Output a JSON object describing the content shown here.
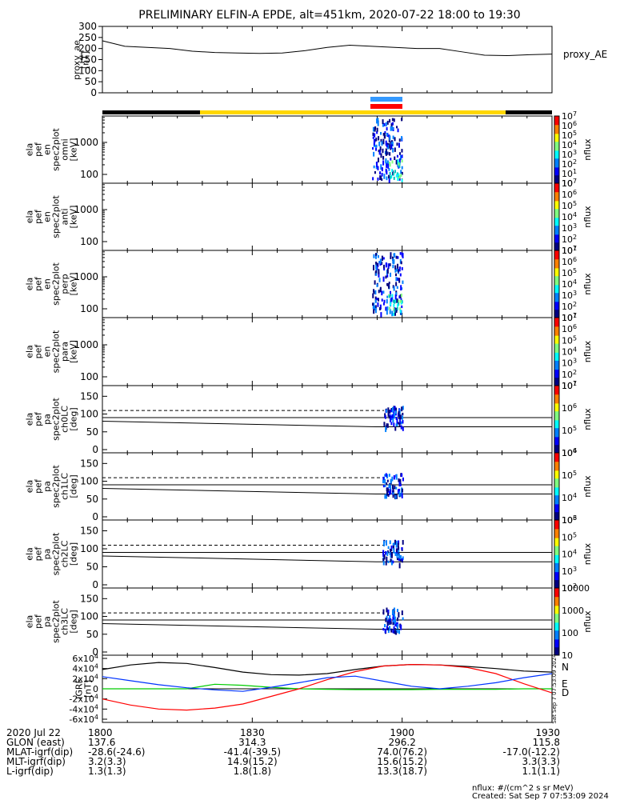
{
  "title": "PRELIMINARY ELFIN-A EPDE, alt=451km, 2020-07-22 18:00 to 19:30",
  "colors": {
    "black_bar": "#000000",
    "yellow_bar": "#ffd700",
    "blue_bar": "#3399ff",
    "red_bar": "#ff0000",
    "grid": "#000000"
  },
  "chart_data": [
    {
      "type": "line",
      "panel": "proxy_ae",
      "ylabel_lines": [
        "proxy_ae",
        "[nT]"
      ],
      "ylim": [
        0,
        300
      ],
      "yticks": [
        "0",
        "50",
        "100",
        "150",
        "200",
        "250",
        "300"
      ],
      "legend": "proxy_AE",
      "x": [
        0,
        0.05,
        0.1,
        0.15,
        0.2,
        0.25,
        0.3,
        0.35,
        0.4,
        0.45,
        0.5,
        0.55,
        0.6,
        0.65,
        0.7,
        0.75,
        0.8,
        0.85,
        0.9,
        0.95,
        1.0
      ],
      "values": [
        235,
        210,
        205,
        200,
        188,
        182,
        180,
        178,
        180,
        190,
        205,
        215,
        210,
        205,
        200,
        200,
        185,
        170,
        168,
        172,
        175
      ]
    },
    {
      "type": "heatmap",
      "panel": "omni",
      "ylabel_lines": [
        "ela",
        "pef",
        "en",
        "spec2plot",
        "omni",
        "[keV]"
      ],
      "ytick_labels": [
        "100",
        "1000"
      ],
      "colorbar_labels": [
        "10",
        "10^1",
        "10^2",
        "10^3",
        "10^4",
        "10^5",
        "10^6",
        "10^7"
      ],
      "colorbar_title": "nflux"
    },
    {
      "type": "heatmap",
      "panel": "anti",
      "ylabel_lines": [
        "ela",
        "pef",
        "en",
        "spec2plot",
        "anti",
        "[keV]"
      ],
      "ytick_labels": [
        "100",
        "1000"
      ],
      "colorbar_labels": [
        "10^1",
        "10^2",
        "10^3",
        "10^4",
        "10^5",
        "10^6",
        "10^7"
      ],
      "colorbar_title": "nflux"
    },
    {
      "type": "heatmap",
      "panel": "perp",
      "ylabel_lines": [
        "ela",
        "pef",
        "en",
        "spec2plot",
        "perp",
        "[keV]"
      ],
      "ytick_labels": [
        "100",
        "1000"
      ],
      "colorbar_labels": [
        "10^1",
        "10^2",
        "10^3",
        "10^4",
        "10^5",
        "10^6",
        "10^7"
      ],
      "colorbar_title": "nflux"
    },
    {
      "type": "heatmap",
      "panel": "para",
      "ylabel_lines": [
        "ela",
        "pef",
        "en",
        "spec2plot",
        "para",
        "[keV]"
      ],
      "ytick_labels": [
        "100",
        "1000"
      ],
      "colorbar_labels": [
        "10^1",
        "10^2",
        "10^3",
        "10^4",
        "10^5",
        "10^6",
        "10^7"
      ],
      "colorbar_title": "nflux"
    },
    {
      "type": "heatmap",
      "panel": "ch0LC",
      "ylabel_lines": [
        "ela",
        "pef",
        "pa",
        "spec2plot",
        "ch0LC",
        "[deg]"
      ],
      "yticks": [
        "0",
        "50",
        "100",
        "150"
      ],
      "ylim": [
        0,
        180
      ],
      "colorbar_labels": [
        "10^4",
        "10^5",
        "10^6",
        "10^7"
      ],
      "colorbar_title": "nflux"
    },
    {
      "type": "heatmap",
      "panel": "ch1LC",
      "ylabel_lines": [
        "ela",
        "pef",
        "pa",
        "spec2plot",
        "ch1LC",
        "[deg]"
      ],
      "yticks": [
        "0",
        "50",
        "100",
        "150"
      ],
      "ylim": [
        0,
        180
      ],
      "colorbar_labels": [
        "10^3",
        "10^4",
        "10^5",
        "10^6"
      ],
      "colorbar_title": "nflux"
    },
    {
      "type": "heatmap",
      "panel": "ch2LC",
      "ylabel_lines": [
        "ela",
        "pef",
        "pa",
        "spec2plot",
        "ch2LC",
        "[deg]"
      ],
      "yticks": [
        "0",
        "50",
        "100",
        "150"
      ],
      "ylim": [
        0,
        180
      ],
      "colorbar_labels": [
        "10^2",
        "10^3",
        "10^4",
        "10^5",
        "10^6"
      ],
      "colorbar_title": "nflux"
    },
    {
      "type": "heatmap",
      "panel": "ch3LC",
      "ylabel_lines": [
        "ela",
        "pef",
        "pa",
        "spec2plot",
        "ch3LC",
        "[deg]"
      ],
      "yticks": [
        "0",
        "50",
        "100",
        "150"
      ],
      "ylim": [
        0,
        180
      ],
      "colorbar_labels": [
        "10",
        "100",
        "1000",
        "10000"
      ],
      "colorbar_title": "nflux"
    },
    {
      "type": "line",
      "panel": "igrf",
      "ylabel_lines": [
        "IGRF",
        "[nT]"
      ],
      "ylim": [
        -60000,
        60000
      ],
      "yticks": [
        "-6x10^4",
        "-4x10^4",
        "-2x10^4",
        "0",
        "2x10^4",
        "4x10^4",
        "6x10^4"
      ],
      "series": [
        {
          "name": "N",
          "color": "#000000",
          "values": [
            38000,
            47000,
            52000,
            50000,
            42000,
            33000,
            28000,
            27000,
            30000,
            38000,
            45000,
            48000,
            47000,
            44000,
            40000,
            35000,
            33000
          ]
        },
        {
          "name": "E",
          "color": "#00cc00",
          "values": [
            0,
            0,
            0,
            0,
            9000,
            7000,
            3000,
            0,
            -1000,
            -1500,
            -1500,
            -1500,
            -1000,
            -1000,
            -1000,
            0,
            0
          ]
        },
        {
          "name": "D",
          "color": "#ff0000",
          "values": [
            -20000,
            -32000,
            -40000,
            -42000,
            -38000,
            -30000,
            -15000,
            0,
            18000,
            34000,
            45000,
            48000,
            47000,
            42000,
            30000,
            10000,
            -8000
          ]
        },
        {
          "name": "blue",
          "color": "#0033ff",
          "values": [
            24000,
            16000,
            8000,
            2000,
            -2000,
            -5000,
            3000,
            12000,
            22000,
            25000,
            15000,
            5000,
            0,
            5000,
            12000,
            22000,
            30000
          ]
        }
      ],
      "legend": [
        "N",
        "E",
        "D"
      ],
      "side_note": "Sat Sep  7 07:53:09 2024"
    }
  ],
  "xaxis": {
    "tick_labels": [
      "1800",
      "1830",
      "1900",
      "1930"
    ],
    "rows": [
      {
        "label": "2020 Jul 22",
        "values": [
          "1800",
          "1830",
          "1900",
          "1930"
        ]
      },
      {
        "label": "GLON (east)",
        "values": [
          "137.6",
          "314.3",
          "296.2",
          "115.8"
        ]
      },
      {
        "label": "MLAT-igrf(dip)",
        "values": [
          "-28.6(-24.6)",
          "-41.4(-39.5)",
          "74.0(76.2)",
          "-17.0(-12.2)"
        ]
      },
      {
        "label": "MLT-igrf(dip)",
        "values": [
          "3.2(3.3)",
          "14.9(15.2)",
          "15.6(15.2)",
          "3.3(3.3)"
        ]
      },
      {
        "label": "L-igrf(dip)",
        "values": [
          "1.3(1.3)",
          "1.8(1.8)",
          "13.3(18.7)",
          "1.1(1.1)"
        ]
      }
    ]
  },
  "footer": {
    "units": "nflux: #/(cm^2 s sr MeV)",
    "created": "Created: Sat Sep  7 07:53:09 2024"
  }
}
